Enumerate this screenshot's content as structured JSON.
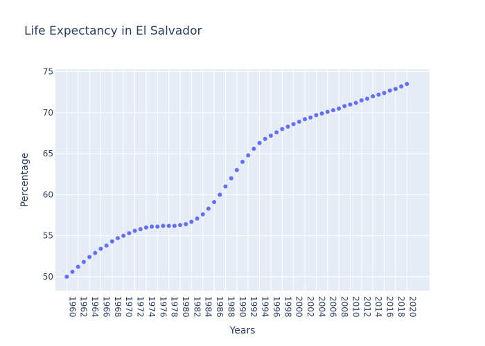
{
  "chart_data": {
    "type": "scatter",
    "title": "Life Expectancy in El Salvador",
    "xlabel": "Years",
    "ylabel": "Percentage",
    "xlim": [
      1958,
      2024
    ],
    "ylim": [
      48.3,
      75.3
    ],
    "grid": true,
    "marker_color": "#636efa",
    "plot_bg": "#e5ecf6",
    "x_ticks": [
      1960,
      1962,
      1964,
      1966,
      1968,
      1970,
      1972,
      1974,
      1976,
      1978,
      1980,
      1982,
      1984,
      1986,
      1988,
      1990,
      1992,
      1994,
      1996,
      1998,
      2000,
      2002,
      2004,
      2006,
      2008,
      2010,
      2012,
      2014,
      2016,
      2018,
      2020
    ],
    "y_ticks": [
      50,
      55,
      60,
      65,
      70,
      75
    ],
    "x": [
      1960,
      1961,
      1962,
      1963,
      1964,
      1965,
      1966,
      1967,
      1968,
      1969,
      1970,
      1971,
      1972,
      1973,
      1974,
      1975,
      1976,
      1977,
      1978,
      1979,
      1980,
      1981,
      1982,
      1983,
      1984,
      1985,
      1986,
      1987,
      1988,
      1989,
      1990,
      1991,
      1992,
      1993,
      1994,
      1995,
      1996,
      1997,
      1998,
      1999,
      2000,
      2001,
      2002,
      2003,
      2004,
      2005,
      2006,
      2007,
      2008,
      2009,
      2010,
      2011,
      2012,
      2013,
      2014,
      2015,
      2016,
      2017,
      2018,
      2019,
      2020
    ],
    "y": [
      50.0,
      50.6,
      51.2,
      51.8,
      52.4,
      52.9,
      53.4,
      53.8,
      54.3,
      54.7,
      55.0,
      55.3,
      55.6,
      55.8,
      56.0,
      56.1,
      56.1,
      56.2,
      56.2,
      56.2,
      56.3,
      56.4,
      56.7,
      57.1,
      57.6,
      58.3,
      59.1,
      60.0,
      61.0,
      62.0,
      63.0,
      64.0,
      64.8,
      65.6,
      66.3,
      66.8,
      67.2,
      67.6,
      68.0,
      68.3,
      68.6,
      68.9,
      69.2,
      69.4,
      69.7,
      69.9,
      70.1,
      70.3,
      70.5,
      70.8,
      71.0,
      71.2,
      71.5,
      71.7,
      72.0,
      72.2,
      72.4,
      72.7,
      72.9,
      73.2,
      73.5
    ]
  }
}
